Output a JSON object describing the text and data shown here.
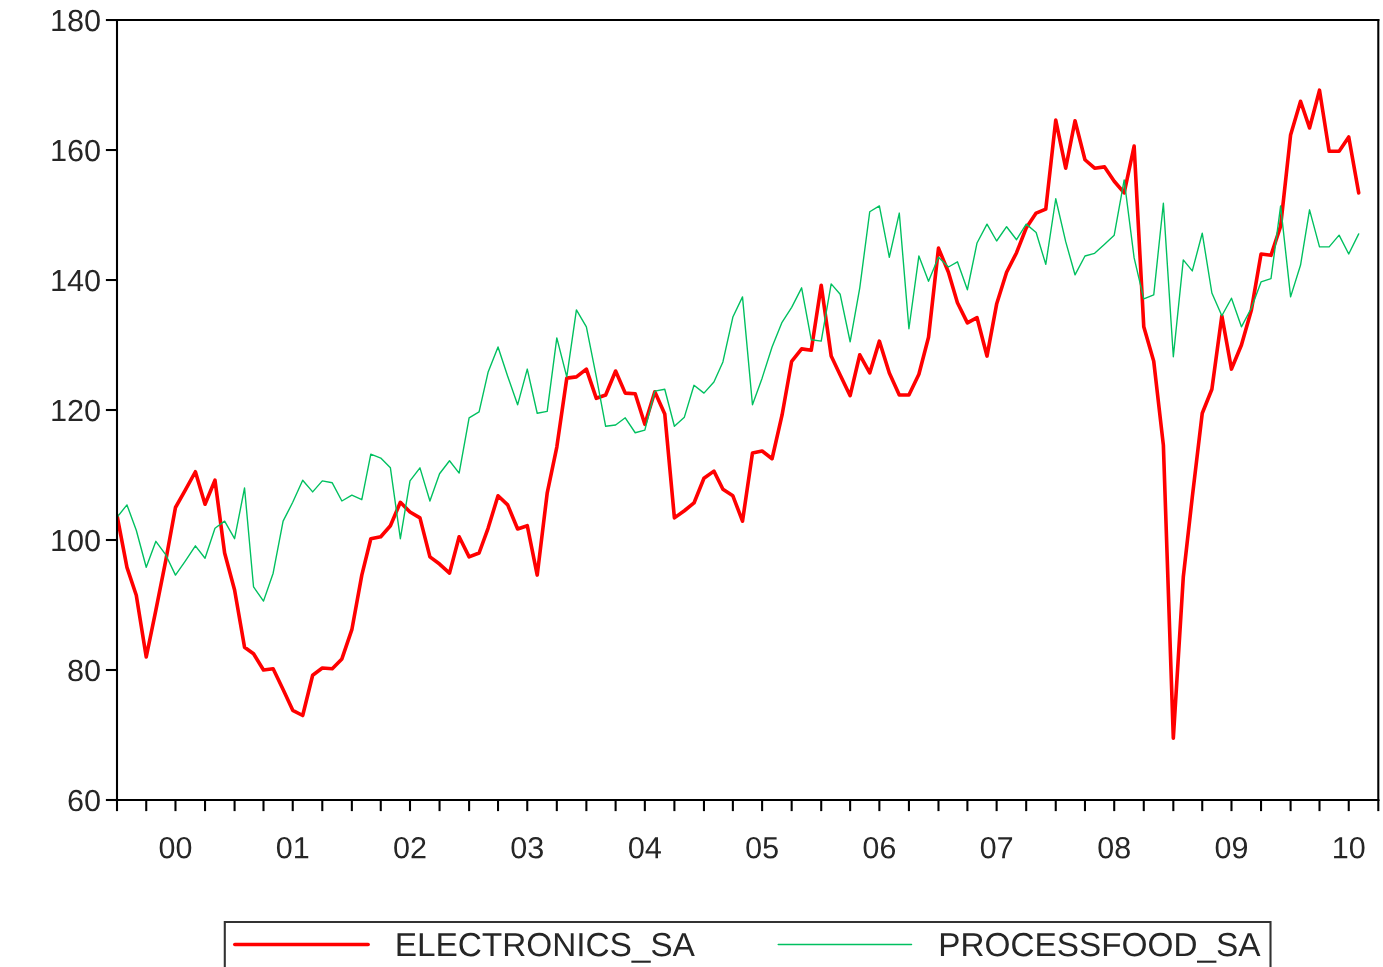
{
  "chart_data": {
    "type": "line",
    "x": [
      "2000-01",
      "2000-02",
      "2000-03",
      "2000-04",
      "2000-05",
      "2000-06",
      "2000-07",
      "2000-08",
      "2000-09",
      "2000-10",
      "2000-11",
      "2000-12",
      "2001-01",
      "2001-02",
      "2001-03",
      "2001-04",
      "2001-05",
      "2001-06",
      "2001-07",
      "2001-08",
      "2001-09",
      "2001-10",
      "2001-11",
      "2001-12",
      "2002-01",
      "2002-02",
      "2002-03",
      "2002-04",
      "2002-05",
      "2002-06",
      "2002-07",
      "2002-08",
      "2002-09",
      "2002-10",
      "2002-11",
      "2002-12",
      "2003-01",
      "2003-02",
      "2003-03",
      "2003-04",
      "2003-05",
      "2003-06",
      "2003-07",
      "2003-08",
      "2003-09",
      "2003-10",
      "2003-11",
      "2003-12",
      "2004-01",
      "2004-02",
      "2004-03",
      "2004-04",
      "2004-05",
      "2004-06",
      "2004-07",
      "2004-08",
      "2004-09",
      "2004-10",
      "2004-11",
      "2004-12",
      "2005-01",
      "2005-02",
      "2005-03",
      "2005-04",
      "2005-05",
      "2005-06",
      "2005-07",
      "2005-08",
      "2005-09",
      "2005-10",
      "2005-11",
      "2005-12",
      "2006-01",
      "2006-02",
      "2006-03",
      "2006-04",
      "2006-05",
      "2006-06",
      "2006-07",
      "2006-08",
      "2006-09",
      "2006-10",
      "2006-11",
      "2006-12",
      "2007-01",
      "2007-02",
      "2007-03",
      "2007-04",
      "2007-05",
      "2007-06",
      "2007-07",
      "2007-08",
      "2007-09",
      "2007-10",
      "2007-11",
      "2007-12",
      "2008-01",
      "2008-02",
      "2008-03",
      "2008-04",
      "2008-05",
      "2008-06",
      "2008-07",
      "2008-08",
      "2008-09",
      "2008-10",
      "2008-11",
      "2008-12",
      "2009-01",
      "2009-02",
      "2009-03",
      "2009-04",
      "2009-05",
      "2009-06",
      "2009-07",
      "2009-08",
      "2009-09",
      "2009-10",
      "2009-11",
      "2009-12",
      "2010-01",
      "2010-02",
      "2010-03",
      "2010-04",
      "2010-05",
      "2010-06",
      "2010-07",
      "2010-08"
    ],
    "series": [
      {
        "name": "ELECTRONICS_SA",
        "color": "#ff0000",
        "values": [
          103.8,
          95.8,
          91.5,
          82,
          89.2,
          96.9,
          105,
          107.7,
          110.5,
          105.5,
          109.2,
          98,
          92.3,
          83.5,
          82.5,
          80,
          80.2,
          77,
          73.8,
          73,
          79.2,
          80.3,
          80.2,
          81.7,
          86.2,
          94.6,
          100.2,
          100.5,
          102.2,
          105.8,
          104.3,
          103.4,
          97.4,
          96.3,
          94.9,
          100.5,
          97.4,
          98,
          101.8,
          106.8,
          105.4,
          101.7,
          102.2,
          94.6,
          107.2,
          114.3,
          124.9,
          125.1,
          126.3,
          121.8,
          122.3,
          126,
          122.6,
          122.5,
          117.8,
          122.8,
          119.4,
          103.4,
          104.5,
          105.7,
          109.5,
          110.6,
          107.8,
          106.8,
          102.9,
          113.4,
          113.7,
          112.5,
          119.2,
          127.5,
          129.4,
          129.2,
          139.2,
          128.3,
          125.4,
          122.2,
          128.5,
          125.7,
          130.6,
          125.7,
          122.3,
          122.3,
          125.5,
          131.2,
          144.9,
          141.2,
          136.5,
          133.4,
          134.2,
          128.3,
          136.3,
          141.2,
          144.2,
          148,
          150.3,
          150.9,
          164.6,
          157.2,
          164.5,
          158.5,
          157.2,
          157.4,
          155.2,
          153.4,
          160.6,
          132.8,
          127.5,
          114.6,
          69.5,
          94.3,
          106.6,
          119.5,
          123.2,
          134.5,
          126.3,
          130,
          135.4,
          144,
          143.8,
          148.3,
          162.3,
          167.5,
          163.4,
          169.2,
          159.8,
          159.8,
          162,
          153.4
        ]
      },
      {
        "name": "PROCESSFOOD_SA",
        "color": "#00c060",
        "values": [
          103.5,
          105.4,
          101.5,
          95.8,
          99.8,
          97.7,
          94.6,
          96.8,
          99.1,
          97.2,
          101.8,
          102.9,
          100.2,
          108,
          92.8,
          90.6,
          94.9,
          102.9,
          105.8,
          109.2,
          107.4,
          109.1,
          108.8,
          106,
          106.9,
          106.2,
          113.2,
          112.6,
          111.1,
          100.2,
          109.1,
          111.1,
          106,
          110.2,
          112.2,
          110.3,
          118.8,
          119.7,
          125.8,
          129.7,
          125.2,
          120.8,
          126.3,
          119.5,
          119.8,
          131.1,
          125.1,
          135.4,
          132.8,
          125.1,
          117.5,
          117.7,
          118.8,
          116.5,
          116.9,
          122.9,
          123.2,
          117.5,
          118.9,
          123.8,
          122.6,
          124.3,
          127.4,
          134.3,
          137.4,
          120.8,
          124.9,
          129.7,
          133.5,
          135.8,
          138.8,
          130.8,
          130.6,
          139.4,
          137.8,
          130.5,
          138.8,
          150.5,
          151.4,
          143.5,
          150.3,
          132.5,
          143.7,
          139.8,
          143.5,
          142,
          142.8,
          138.5,
          145.7,
          148.6,
          146,
          148.2,
          146.2,
          148.6,
          147.3,
          142.4,
          152.5,
          145.9,
          140.8,
          143.7,
          144.1,
          145.5,
          146.9,
          155.4,
          143.4,
          137.1,
          137.7,
          151.8,
          128.2,
          143.1,
          141.4,
          147.2,
          138,
          134.5,
          137.2,
          132.8,
          135.7,
          139.7,
          140.2,
          151.4,
          137.4,
          142.3,
          150.8,
          145.1,
          145.1,
          146.9,
          144,
          147.1
        ]
      }
    ],
    "xlim": [
      "2000-01",
      "2010-10"
    ],
    "xticks": [
      {
        "value": "2000-01",
        "label": null
      },
      {
        "value": "2000-04",
        "label": null
      },
      {
        "value": "2000-07",
        "label": "00"
      },
      {
        "value": "2000-10",
        "label": null
      },
      {
        "value": "2001-01",
        "label": null
      },
      {
        "value": "2001-04",
        "label": null
      },
      {
        "value": "2001-07",
        "label": "01"
      },
      {
        "value": "2001-10",
        "label": null
      },
      {
        "value": "2002-01",
        "label": null
      },
      {
        "value": "2002-04",
        "label": null
      },
      {
        "value": "2002-07",
        "label": "02"
      },
      {
        "value": "2002-10",
        "label": null
      },
      {
        "value": "2003-01",
        "label": null
      },
      {
        "value": "2003-04",
        "label": null
      },
      {
        "value": "2003-07",
        "label": "03"
      },
      {
        "value": "2003-10",
        "label": null
      },
      {
        "value": "2004-01",
        "label": null
      },
      {
        "value": "2004-04",
        "label": null
      },
      {
        "value": "2004-07",
        "label": "04"
      },
      {
        "value": "2004-10",
        "label": null
      },
      {
        "value": "2005-01",
        "label": null
      },
      {
        "value": "2005-04",
        "label": null
      },
      {
        "value": "2005-07",
        "label": "05"
      },
      {
        "value": "2005-10",
        "label": null
      },
      {
        "value": "2006-01",
        "label": null
      },
      {
        "value": "2006-04",
        "label": null
      },
      {
        "value": "2006-07",
        "label": "06"
      },
      {
        "value": "2006-10",
        "label": null
      },
      {
        "value": "2007-01",
        "label": null
      },
      {
        "value": "2007-04",
        "label": null
      },
      {
        "value": "2007-07",
        "label": "07"
      },
      {
        "value": "2007-10",
        "label": null
      },
      {
        "value": "2008-01",
        "label": null
      },
      {
        "value": "2008-04",
        "label": null
      },
      {
        "value": "2008-07",
        "label": "08"
      },
      {
        "value": "2008-10",
        "label": null
      },
      {
        "value": "2009-01",
        "label": null
      },
      {
        "value": "2009-04",
        "label": null
      },
      {
        "value": "2009-07",
        "label": "09"
      },
      {
        "value": "2009-10",
        "label": null
      },
      {
        "value": "2010-01",
        "label": null
      },
      {
        "value": "2010-04",
        "label": null
      },
      {
        "value": "2010-07",
        "label": "10"
      },
      {
        "value": "2010-10",
        "label": null
      }
    ],
    "ylim": [
      60,
      180
    ],
    "yticks": [
      60,
      80,
      100,
      120,
      140,
      160,
      180
    ],
    "grid": false,
    "legend": "bottom",
    "marker": "none",
    "line_style": "solid"
  }
}
